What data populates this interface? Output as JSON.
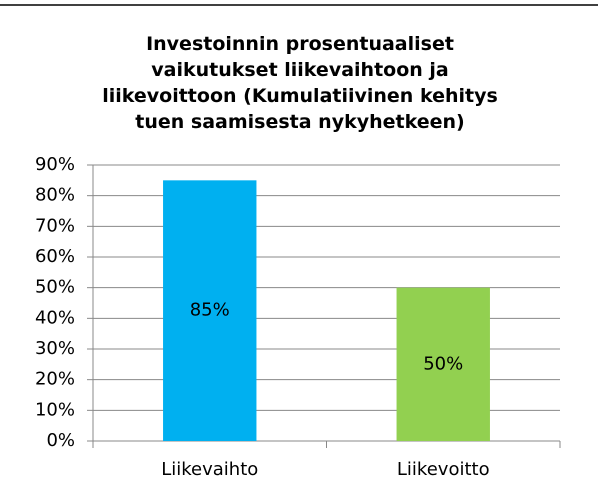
{
  "chart_data": {
    "type": "bar",
    "title": "Investoinnin prosentuaaliset\nvaikutukset liikevaihtoon ja\nliikevoittoon (Kumulatiivinen kehitys\ntuen saamisesta nykyhetkeen)",
    "categories": [
      "Liikevaihto",
      "Liikevoitto"
    ],
    "values": [
      85,
      50
    ],
    "value_labels": [
      "85%",
      "50%"
    ],
    "colors": [
      "#00b0f0",
      "#92d050"
    ],
    "ylim": [
      0,
      90
    ],
    "yticks": [
      {
        "value": 0,
        "label": "0%"
      },
      {
        "value": 10,
        "label": "10%"
      },
      {
        "value": 20,
        "label": "20%"
      },
      {
        "value": 30,
        "label": "30%"
      },
      {
        "value": 40,
        "label": "40%"
      },
      {
        "value": 50,
        "label": "50%"
      },
      {
        "value": 60,
        "label": "60%"
      },
      {
        "value": 70,
        "label": "70%"
      },
      {
        "value": 80,
        "label": "80%"
      },
      {
        "value": 90,
        "label": "90%"
      }
    ],
    "grid": true
  }
}
